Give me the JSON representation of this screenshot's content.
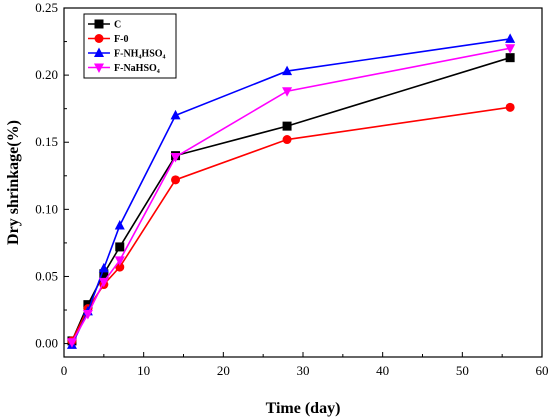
{
  "chart_data": {
    "type": "line",
    "xlabel": "Time (day)",
    "ylabel": "Dry shrinkage(%)",
    "xlim": [
      0,
      60
    ],
    "ylim": [
      -0.01,
      0.25
    ],
    "xticks": [
      0,
      10,
      20,
      30,
      40,
      50,
      60
    ],
    "xtick_labels": [
      "0",
      "10",
      "20",
      "30",
      "40",
      "50",
      "60"
    ],
    "yticks": [
      0.0,
      0.05,
      0.1,
      0.15,
      0.2,
      0.25
    ],
    "ytick_labels": [
      "0.00",
      "0.05",
      "0.10",
      "0.15",
      "0.20",
      "0.25"
    ],
    "grid": false,
    "legend_position": "top-left",
    "x": [
      1,
      3,
      5,
      7,
      14,
      28,
      56
    ],
    "series": [
      {
        "name": "C",
        "color": "#000000",
        "marker": "square",
        "values": [
          0.002,
          0.029,
          0.052,
          0.072,
          0.14,
          0.162,
          0.213
        ]
      },
      {
        "name": "F-0",
        "color": "#ff0000",
        "marker": "circle",
        "values": [
          0.002,
          0.026,
          0.044,
          0.057,
          0.122,
          0.152,
          0.176
        ]
      },
      {
        "name": "F-NH₄HSO₄",
        "color": "#0000ff",
        "marker": "triangle-up",
        "values": [
          -0.001,
          0.024,
          0.056,
          0.088,
          0.17,
          0.203,
          0.227
        ]
      },
      {
        "name": "F-NaHSO₄",
        "color": "#ff00ff",
        "marker": "triangle-down",
        "values": [
          0.001,
          0.022,
          0.046,
          0.062,
          0.139,
          0.188,
          0.22
        ]
      }
    ]
  }
}
